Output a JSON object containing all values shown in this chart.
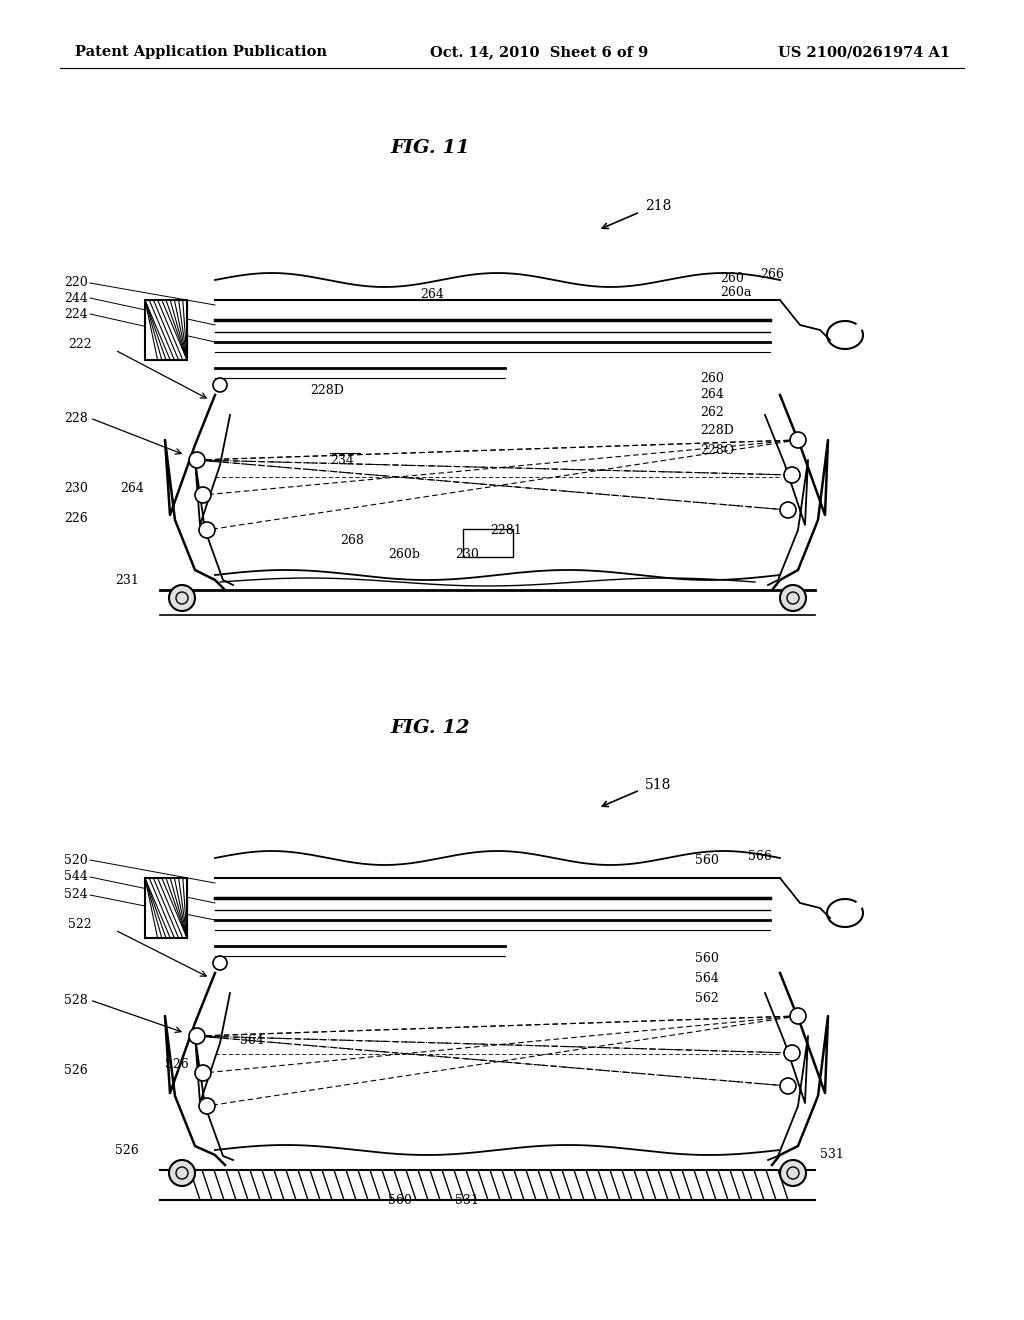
{
  "background_color": "#ffffff",
  "header_left": "Patent Application Publication",
  "header_center": "Oct. 14, 2010  Sheet 6 of 9",
  "header_right": "US 2100/0261974 A1",
  "fig11_title": "FIG. 11",
  "fig12_title": "FIG. 12",
  "fig11_ref": "218",
  "fig12_ref": "518"
}
